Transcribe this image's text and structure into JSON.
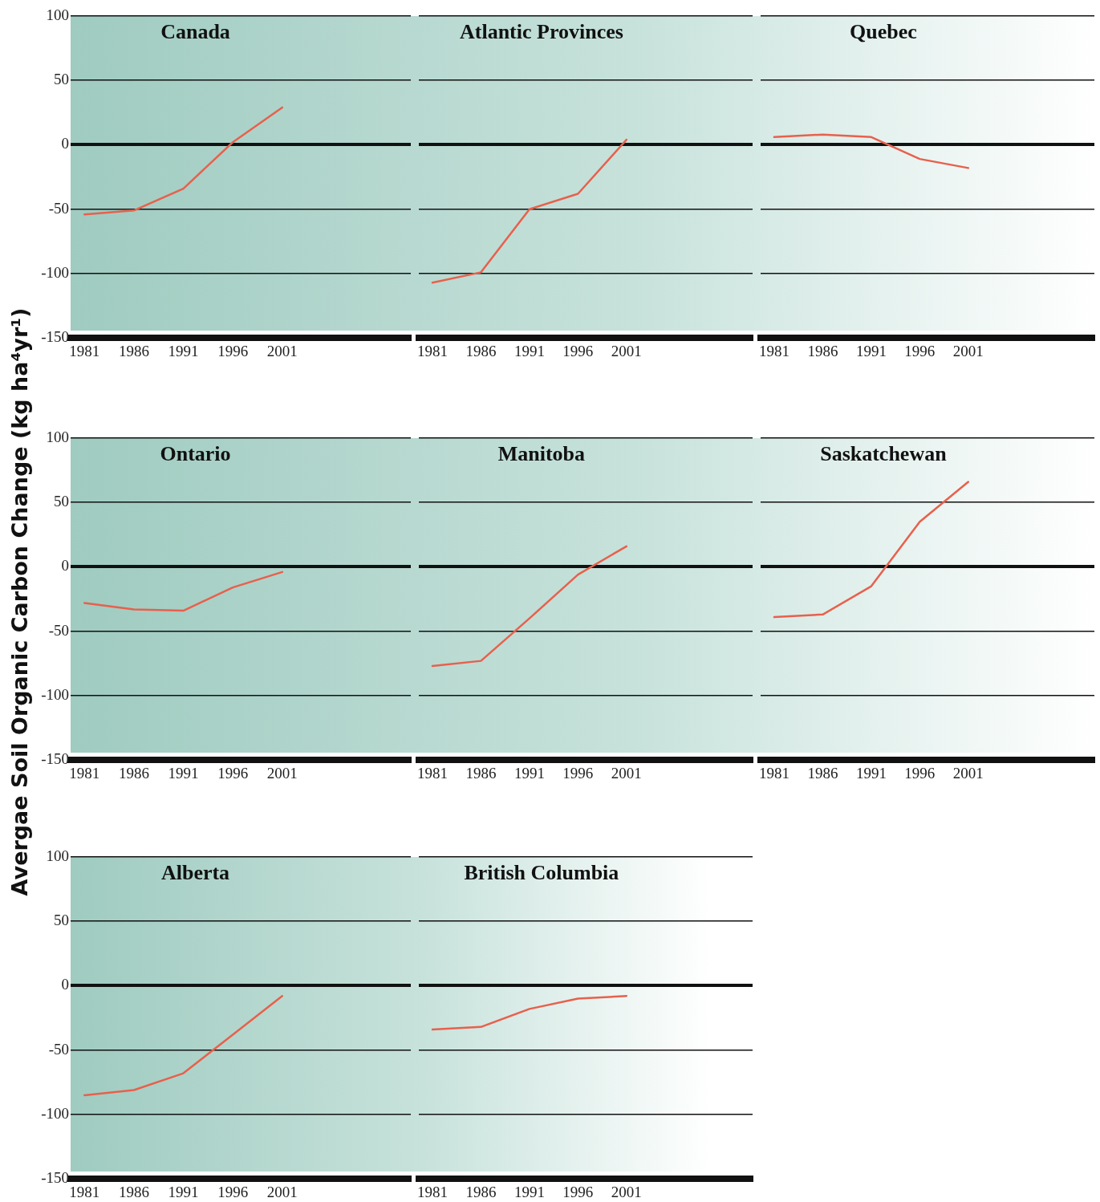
{
  "chart_data": [
    {
      "type": "line",
      "title": "Canada",
      "ylabel": "Avergae Soil Organic Carbon Change (kg ha⁴yr¹)",
      "x": [
        1981,
        1986,
        1991,
        1996,
        2001
      ],
      "xlim": [
        1979.6,
        2014
      ],
      "xticks": [
        1981,
        1986,
        1991,
        1996,
        2001
      ],
      "ylim": [
        -150,
        100
      ],
      "yticks": [
        -150,
        -100,
        -50,
        0,
        50,
        100
      ],
      "grid": "y",
      "marker": "none",
      "line_style": "solid",
      "series": [
        {
          "color": "#e8604c",
          "values": [
            -54,
            -51,
            -34,
            2,
            29
          ]
        }
      ]
    },
    {
      "type": "line",
      "title": "Atlantic Provinces",
      "x": [
        1981,
        1986,
        1991,
        1996,
        2001
      ],
      "xlim": [
        1979.6,
        2014
      ],
      "xticks": [
        1981,
        1986,
        1991,
        1996,
        2001
      ],
      "ylim": [
        -150,
        100
      ],
      "yticks": [
        -150,
        -100,
        -50,
        0,
        50,
        100
      ],
      "grid": "y",
      "tick_labels": "x",
      "marker": "none",
      "line_style": "solid",
      "series": [
        {
          "color": "#e8604c",
          "values": [
            -107,
            -99,
            -50,
            -38,
            4
          ]
        }
      ]
    },
    {
      "type": "line",
      "title": "Quebec",
      "x": [
        1981,
        1986,
        1991,
        1996,
        2001
      ],
      "xlim": [
        1979.6,
        2014
      ],
      "xticks": [
        1981,
        1986,
        1991,
        1996,
        2001
      ],
      "ylim": [
        -150,
        100
      ],
      "yticks": [
        -150,
        -100,
        -50,
        0,
        50,
        100
      ],
      "grid": "y",
      "tick_labels": "x",
      "marker": "none",
      "line_style": "solid",
      "series": [
        {
          "color": "#e8604c",
          "values": [
            6,
            8,
            6,
            -11,
            -18
          ]
        }
      ]
    },
    {
      "type": "line",
      "title": "Ontario",
      "x": [
        1981,
        1986,
        1991,
        1996,
        2001
      ],
      "xlim": [
        1979.6,
        2014
      ],
      "xticks": [
        1981,
        1986,
        1991,
        1996,
        2001
      ],
      "ylim": [
        -150,
        100
      ],
      "yticks": [
        -150,
        -100,
        -50,
        0,
        50,
        100
      ],
      "grid": "y",
      "marker": "none",
      "line_style": "solid",
      "series": [
        {
          "color": "#e8604c",
          "values": [
            -28,
            -33,
            -34,
            -16,
            -4
          ]
        }
      ]
    },
    {
      "type": "line",
      "title": "Manitoba",
      "x": [
        1981,
        1986,
        1991,
        1996,
        2001
      ],
      "xlim": [
        1979.6,
        2014
      ],
      "xticks": [
        1981,
        1986,
        1991,
        1996,
        2001
      ],
      "ylim": [
        -150,
        100
      ],
      "yticks": [
        -150,
        -100,
        -50,
        0,
        50,
        100
      ],
      "grid": "y",
      "tick_labels": "x",
      "marker": "none",
      "line_style": "solid",
      "series": [
        {
          "color": "#e8604c",
          "values": [
            -77,
            -73,
            -40,
            -6,
            16
          ]
        }
      ]
    },
    {
      "type": "line",
      "title": "Saskatchewan",
      "x": [
        1981,
        1986,
        1991,
        1996,
        2001
      ],
      "xlim": [
        1979.6,
        2014
      ],
      "xticks": [
        1981,
        1986,
        1991,
        1996,
        2001
      ],
      "ylim": [
        -150,
        100
      ],
      "yticks": [
        -150,
        -100,
        -50,
        0,
        50,
        100
      ],
      "grid": "y",
      "tick_labels": "x",
      "marker": "none",
      "line_style": "solid",
      "series": [
        {
          "color": "#e8604c",
          "values": [
            -39,
            -37,
            -15,
            35,
            66
          ]
        }
      ]
    },
    {
      "type": "line",
      "title": "Alberta",
      "x": [
        1981,
        1986,
        1991,
        1996,
        2001
      ],
      "xlim": [
        1979.6,
        2014
      ],
      "xticks": [
        1981,
        1986,
        1991,
        1996,
        2001
      ],
      "ylim": [
        -150,
        100
      ],
      "yticks": [
        -150,
        -100,
        -50,
        0,
        50,
        100
      ],
      "grid": "y",
      "marker": "none",
      "line_style": "solid",
      "series": [
        {
          "color": "#e8604c",
          "values": [
            -85,
            -81,
            -68,
            -38,
            -8
          ]
        }
      ]
    },
    {
      "type": "line",
      "title": "British Columbia",
      "x": [
        1981,
        1986,
        1991,
        1996,
        2001
      ],
      "xlim": [
        1979.6,
        2014
      ],
      "xticks": [
        1981,
        1986,
        1991,
        1996,
        2001
      ],
      "ylim": [
        -150,
        100
      ],
      "yticks": [
        -150,
        -100,
        -50,
        0,
        50,
        100
      ],
      "grid": "y",
      "tick_labels": "x",
      "marker": "none",
      "line_style": "solid",
      "series": [
        {
          "color": "#e8604c",
          "values": [
            -34,
            -32,
            -18,
            -10,
            -8
          ]
        }
      ]
    }
  ]
}
